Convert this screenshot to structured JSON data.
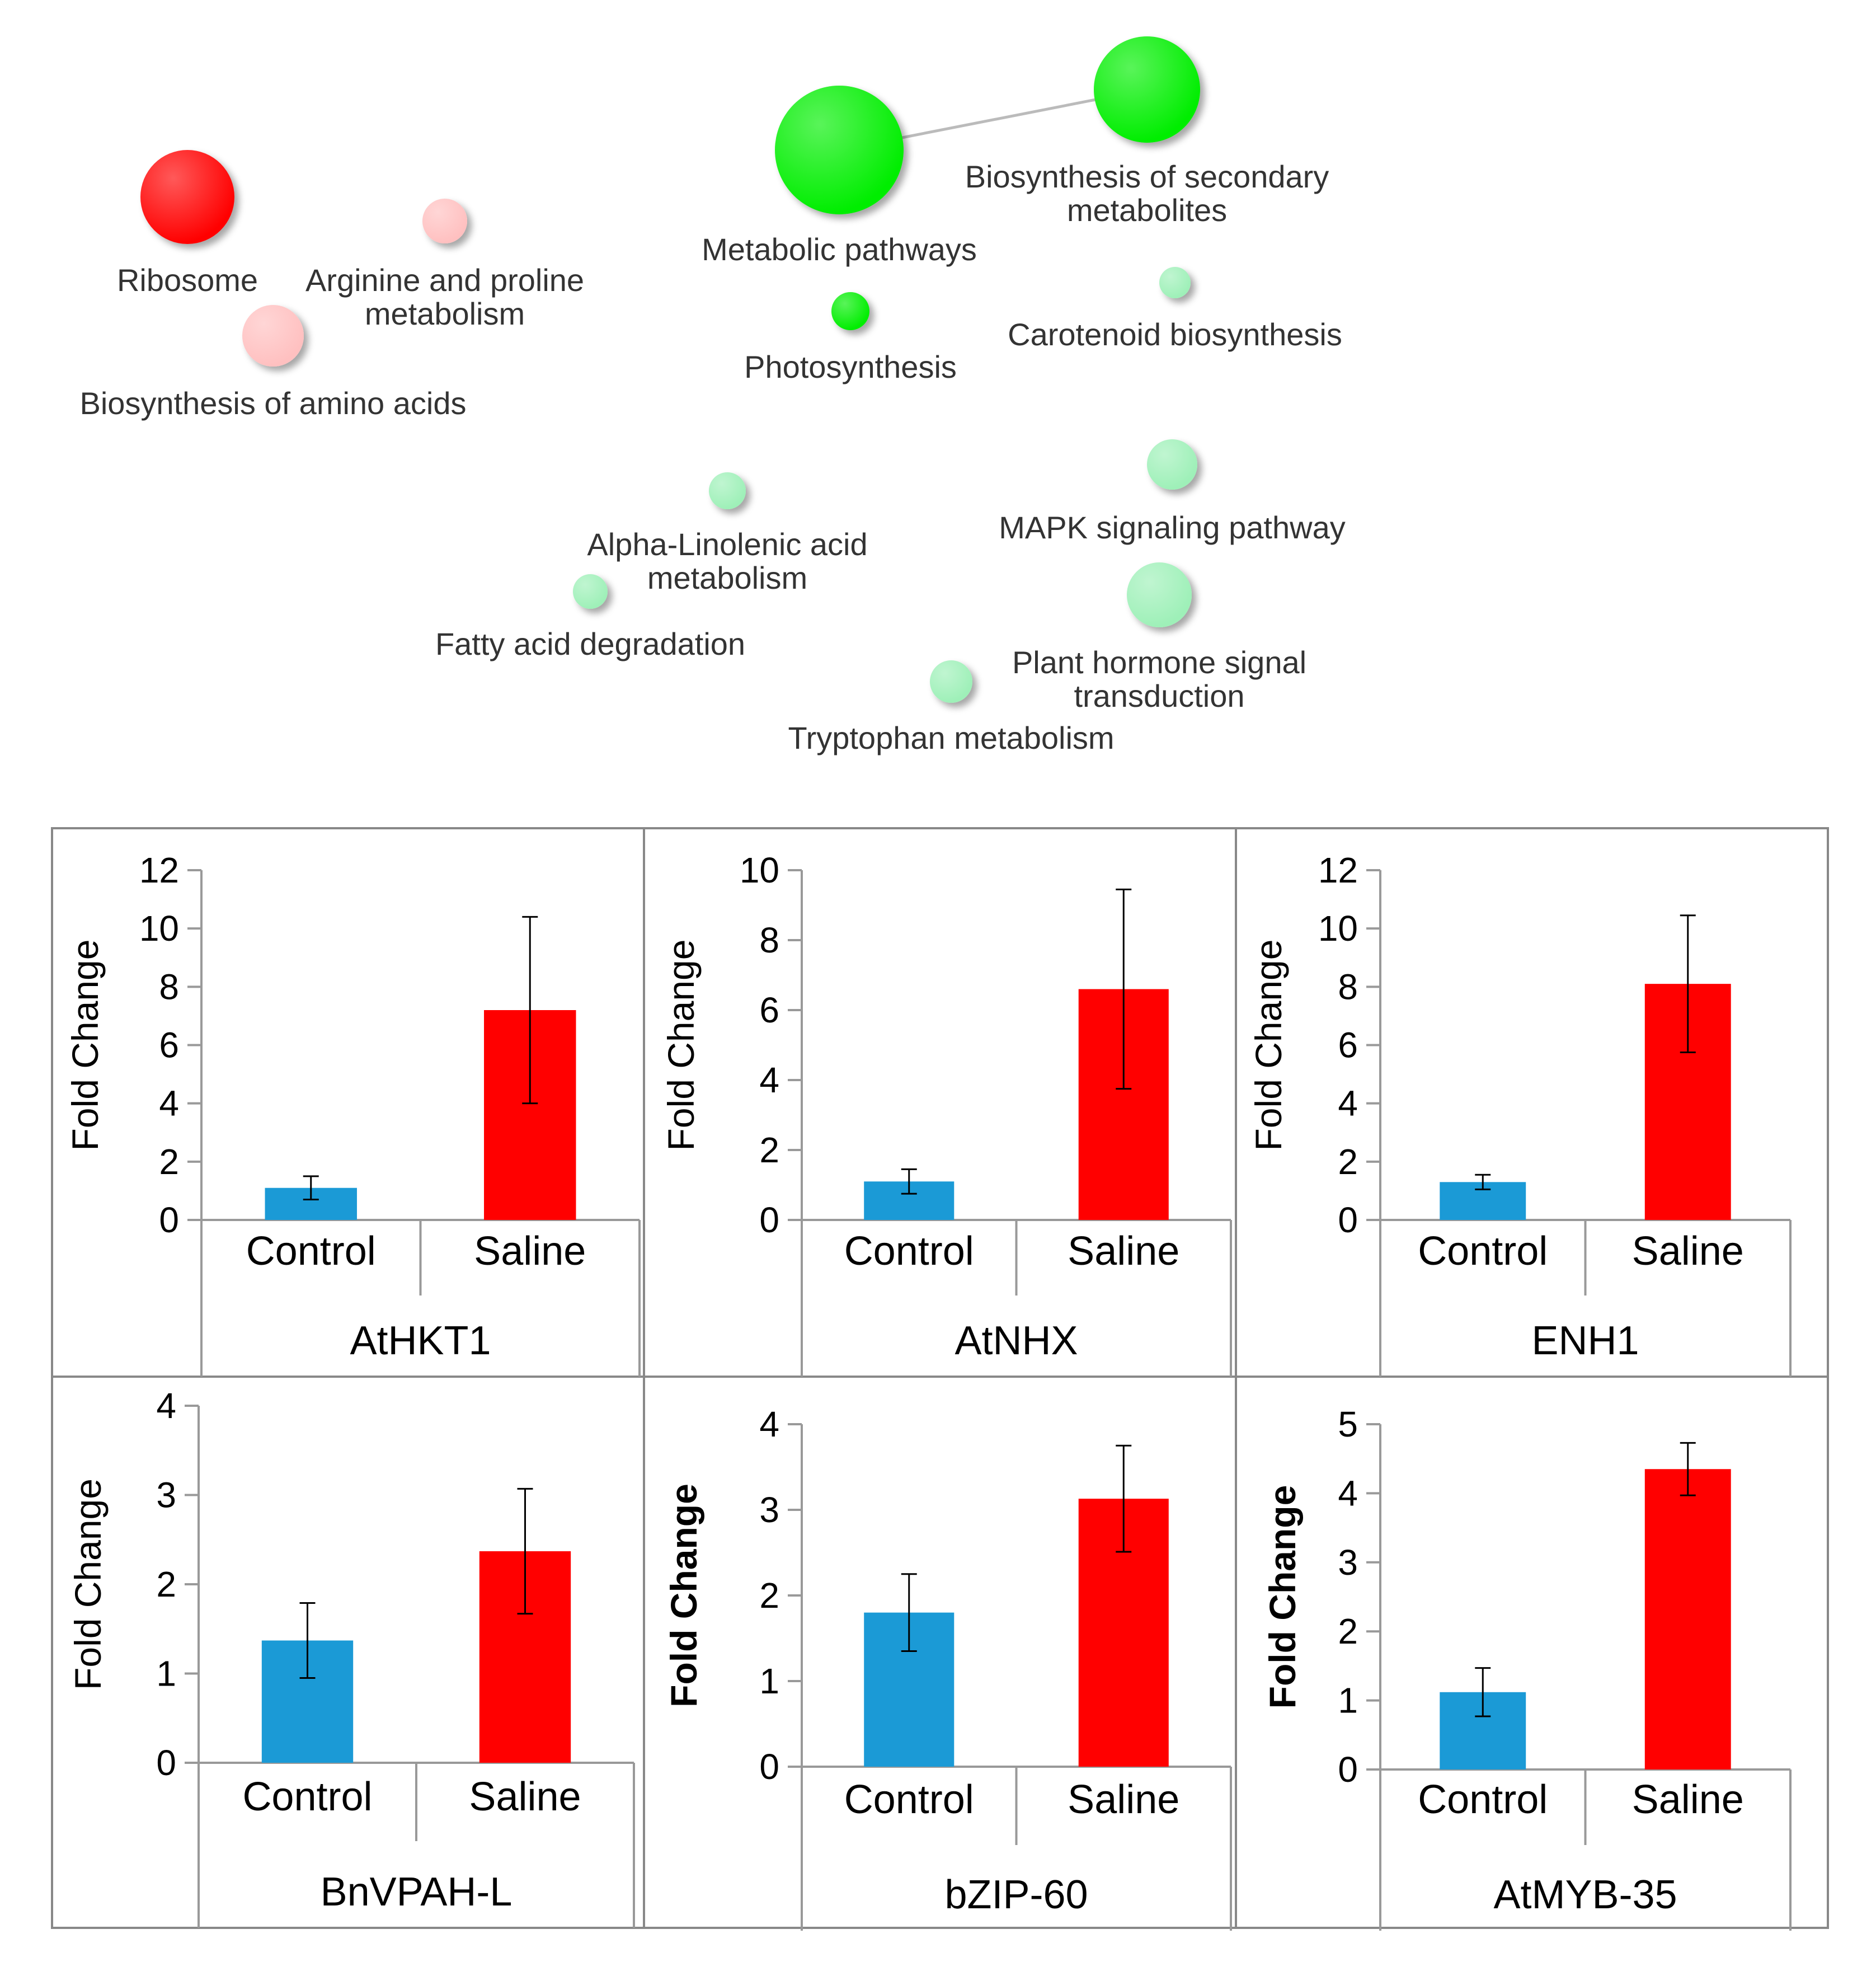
{
  "network": {
    "colors": {
      "strong_up": "#ff0000",
      "weak_up": "#ffc0c0",
      "strong_down": "#00ee00",
      "weak_down": "#9ef0b8",
      "edge": "#bbbbbb"
    },
    "nodes": [
      {
        "id": "ribosome",
        "label_lines": [
          "Ribosome"
        ],
        "level": "strong_up"
      },
      {
        "id": "arginine",
        "label_lines": [
          "Arginine and proline",
          "metabolism"
        ],
        "level": "weak_up"
      },
      {
        "id": "amino-acids",
        "label_lines": [
          "Biosynthesis of amino acids"
        ],
        "level": "weak_up"
      },
      {
        "id": "metabolic",
        "label_lines": [
          "Metabolic pathways"
        ],
        "level": "strong_down"
      },
      {
        "id": "secondary",
        "label_lines": [
          "Biosynthesis of secondary",
          "metabolites"
        ],
        "level": "strong_down"
      },
      {
        "id": "photosynthesis",
        "label_lines": [
          "Photosynthesis"
        ],
        "level": "strong_down"
      },
      {
        "id": "carotenoid",
        "label_lines": [
          "Carotenoid biosynthesis"
        ],
        "level": "weak_down"
      },
      {
        "id": "alpha-linolenic",
        "label_lines": [
          "Alpha-Linolenic acid",
          "metabolism"
        ],
        "level": "weak_down"
      },
      {
        "id": "mapk",
        "label_lines": [
          "MAPK signaling pathway"
        ],
        "level": "weak_down"
      },
      {
        "id": "fatty-acid",
        "label_lines": [
          "Fatty acid degradation"
        ],
        "level": "weak_down"
      },
      {
        "id": "plant-hormone",
        "label_lines": [
          "Plant hormone signal",
          "transduction"
        ],
        "level": "weak_down"
      },
      {
        "id": "tryptophan",
        "label_lines": [
          "Tryptophan metabolism"
        ],
        "level": "weak_down"
      }
    ],
    "edges": [
      [
        "metabolic",
        "secondary"
      ]
    ]
  },
  "chart_data": [
    {
      "type": "bar",
      "gene": "AtHKT1",
      "categories": [
        "Control",
        "Saline"
      ],
      "values": [
        1.1,
        7.2
      ],
      "errors": [
        0.4,
        3.2
      ],
      "ylabel": "Fold  Change",
      "ylim": [
        0,
        12
      ],
      "ticks": [
        0,
        2,
        4,
        6,
        8,
        10,
        12
      ],
      "colors": [
        "#1b9ad6",
        "#ff0000"
      ],
      "ylabel_bold": false
    },
    {
      "type": "bar",
      "gene": "AtNHX",
      "categories": [
        "Control",
        "Saline"
      ],
      "values": [
        1.1,
        6.6
      ],
      "errors": [
        0.35,
        2.85
      ],
      "ylabel": "Fold  Change",
      "ylim": [
        0,
        10
      ],
      "ticks": [
        0,
        2,
        4,
        6,
        8,
        10
      ],
      "colors": [
        "#1b9ad6",
        "#ff0000"
      ],
      "ylabel_bold": false
    },
    {
      "type": "bar",
      "gene": "ENH1",
      "categories": [
        "Control",
        "Saline"
      ],
      "values": [
        1.3,
        8.1
      ],
      "errors": [
        0.25,
        2.35
      ],
      "ylabel": "Fold Change",
      "ylim": [
        0,
        12
      ],
      "ticks": [
        0,
        2,
        4,
        6,
        8,
        10,
        12
      ],
      "colors": [
        "#1b9ad6",
        "#ff0000"
      ],
      "ylabel_bold": false
    },
    {
      "type": "bar",
      "gene": "BnVPAH-L",
      "categories": [
        "Control",
        "Saline"
      ],
      "values": [
        1.37,
        2.37
      ],
      "errors": [
        0.42,
        0.7
      ],
      "ylabel": "Fold  Change",
      "ylim": [
        0,
        4
      ],
      "ticks": [
        0,
        1,
        2,
        3,
        4
      ],
      "colors": [
        "#1b9ad6",
        "#ff0000"
      ],
      "ylabel_bold": false
    },
    {
      "type": "bar",
      "gene": "bZIP-60",
      "categories": [
        "Control",
        "Saline"
      ],
      "values": [
        1.8,
        3.13
      ],
      "errors": [
        0.45,
        0.62
      ],
      "ylabel": "Fold  Change",
      "ylim": [
        0,
        4
      ],
      "ticks": [
        0,
        1,
        2,
        3,
        4
      ],
      "colors": [
        "#1b9ad6",
        "#ff0000"
      ],
      "ylabel_bold": true
    },
    {
      "type": "bar",
      "gene": "AtMYB-35",
      "categories": [
        "Control",
        "Saline"
      ],
      "values": [
        1.12,
        4.35
      ],
      "errors": [
        0.35,
        0.38
      ],
      "ylabel": "Fold  Change",
      "ylim": [
        0,
        5
      ],
      "ticks": [
        0,
        1,
        2,
        3,
        4,
        5
      ],
      "colors": [
        "#1b9ad6",
        "#ff0000"
      ],
      "ylabel_bold": true
    }
  ]
}
